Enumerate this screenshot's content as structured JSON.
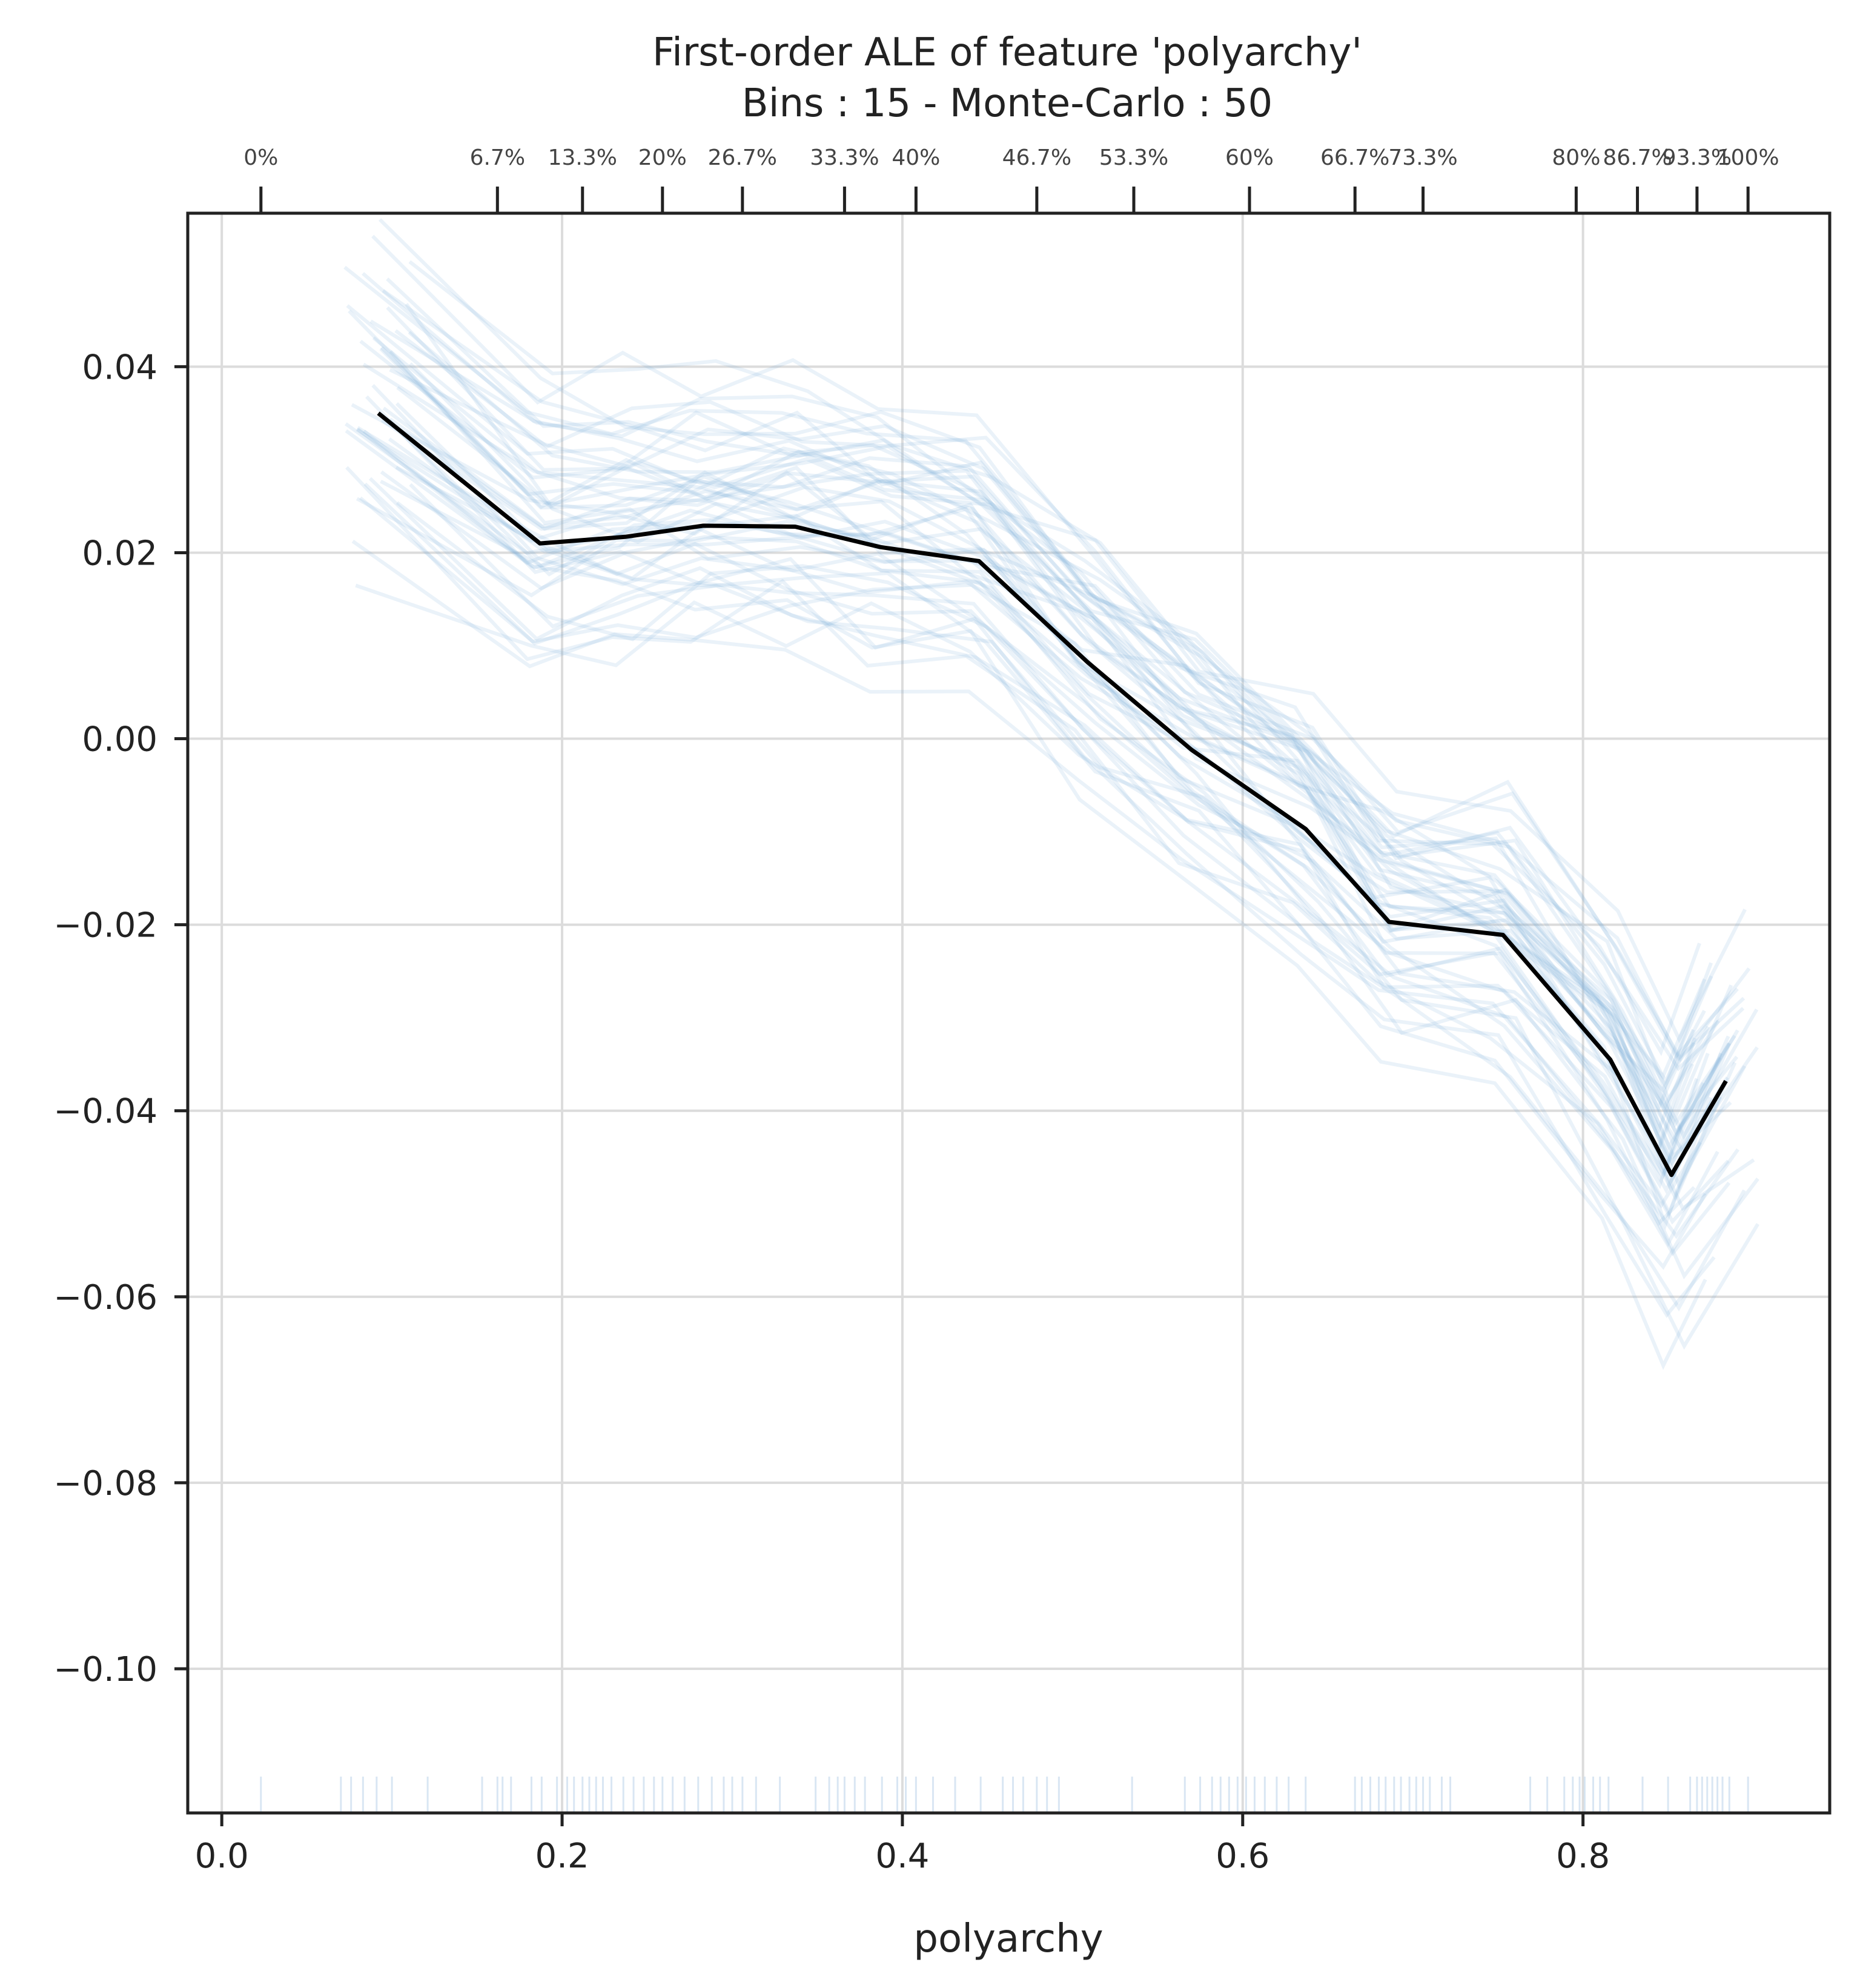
{
  "chart_data": {
    "type": "line",
    "title": "First-order ALE of feature 'polyarchy'",
    "subtitle": "Bins : 15 - Monte-Carlo : 50",
    "xlabel": "polyarchy",
    "ylabel": "",
    "xlim": [
      -0.02,
      0.945
    ],
    "ylim": [
      -0.1155,
      0.0565
    ],
    "grid": true,
    "xticks": [
      0.0,
      0.2,
      0.4,
      0.6,
      0.8
    ],
    "xtick_labels": [
      "0.0",
      "0.2",
      "0.4",
      "0.6",
      "0.8"
    ],
    "yticks": [
      0.04,
      0.02,
      0.0,
      -0.02,
      -0.04,
      -0.06,
      -0.08,
      -0.1
    ],
    "ytick_labels": [
      "0.04",
      "0.02",
      "0.00",
      "−0.02",
      "−0.04",
      "−0.06",
      "−0.08",
      "−0.10"
    ],
    "quantile_axis": {
      "positions": [
        0.023,
        0.162,
        0.212,
        0.259,
        0.306,
        0.366,
        0.408,
        0.479,
        0.536,
        0.604,
        0.666,
        0.706,
        0.796,
        0.832,
        0.867,
        0.897
      ],
      "labels": [
        "0%",
        "6.7%",
        "13.3%",
        "20%",
        "26.7%",
        "33.3%",
        "40%",
        "46.7%",
        "53.3%",
        "60%",
        "66.7%",
        "73.3%",
        "80%",
        "86.7%",
        "93.3%",
        "100%"
      ]
    },
    "series": [
      {
        "x": [
          0.092,
          0.187,
          0.237,
          0.283,
          0.337,
          0.387,
          0.445,
          0.509,
          0.57,
          0.637,
          0.686,
          0.753,
          0.816,
          0.852,
          0.884
        ],
        "values": [
          0.035,
          0.021,
          0.0217,
          0.0229,
          0.0228,
          0.0206,
          0.0191,
          0.0082,
          -0.0012,
          -0.0097,
          -0.0197,
          -0.0211,
          -0.0345,
          -0.0469,
          -0.0368
        ]
      }
    ],
    "monte_carlo_color": "#7fb0d8",
    "main_color": "#000000",
    "rug_x": [
      0.023,
      0.07,
      0.076,
      0.083,
      0.091,
      0.1,
      0.121,
      0.153,
      0.162,
      0.165,
      0.17,
      0.182,
      0.188,
      0.197,
      0.203,
      0.207,
      0.212,
      0.216,
      0.22,
      0.224,
      0.229,
      0.236,
      0.242,
      0.248,
      0.254,
      0.259,
      0.265,
      0.272,
      0.28,
      0.288,
      0.295,
      0.3,
      0.306,
      0.314,
      0.328,
      0.349,
      0.357,
      0.362,
      0.366,
      0.372,
      0.378,
      0.388,
      0.397,
      0.402,
      0.408,
      0.418,
      0.431,
      0.446,
      0.459,
      0.465,
      0.471,
      0.479,
      0.485,
      0.492,
      0.535,
      0.566,
      0.575,
      0.582,
      0.587,
      0.592,
      0.597,
      0.602,
      0.607,
      0.613,
      0.62,
      0.627,
      0.637,
      0.666,
      0.67,
      0.675,
      0.68,
      0.684,
      0.689,
      0.693,
      0.698,
      0.702,
      0.706,
      0.71,
      0.717,
      0.722,
      0.769,
      0.779,
      0.789,
      0.794,
      0.798,
      0.801,
      0.806,
      0.81,
      0.815,
      0.835,
      0.85,
      0.863,
      0.867,
      0.87,
      0.873,
      0.876,
      0.879,
      0.882,
      0.886,
      0.897
    ]
  }
}
